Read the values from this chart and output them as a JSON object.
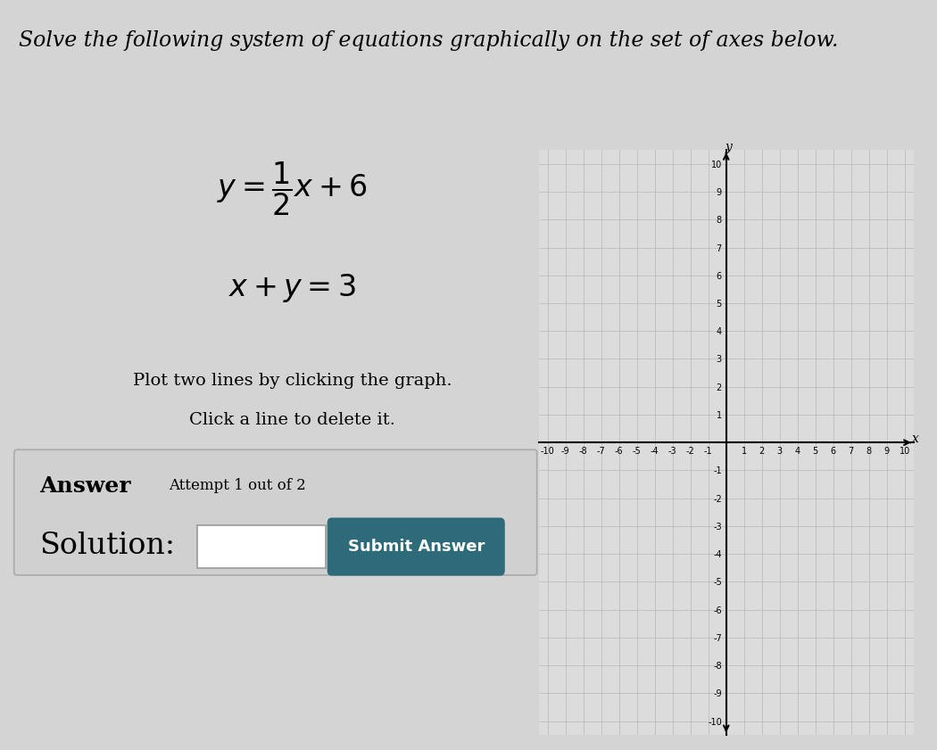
{
  "bg_color": "#d4d4d4",
  "title_text": "Solve the following system of equations graphically on the set of axes below.",
  "title_fontsize": 17,
  "eq1_text": "$y = \\dfrac{1}{2}x + 6$",
  "eq2_text": "$x + y = 3$",
  "eq_fontsize": 24,
  "instruction_line1": "Plot two lines by clicking the graph.",
  "instruction_line2": "Click a line to delete it.",
  "instruction_fontsize": 14,
  "answer_bold": "Answer",
  "answer_regular": "Attempt 1 out of 2",
  "answer_fontsize": 18,
  "attempt_fontsize": 12,
  "solution_label": "Solution:",
  "solution_fontsize": 24,
  "submit_text": "Submit Answer",
  "submit_bg": "#2d6b7a",
  "submit_fontsize": 13,
  "axis_xlim": [
    -10,
    10
  ],
  "axis_ylim": [
    -10,
    10
  ],
  "axis_xlabel": "x",
  "axis_ylabel": "y",
  "grid_color": "#b8b8b8",
  "axis_color": "#000000",
  "tick_fontsize": 7,
  "graph_bg": "#dcdcdc",
  "answer_box_bg": "#d0d0d0",
  "answer_box_edge": "#aaaaaa"
}
